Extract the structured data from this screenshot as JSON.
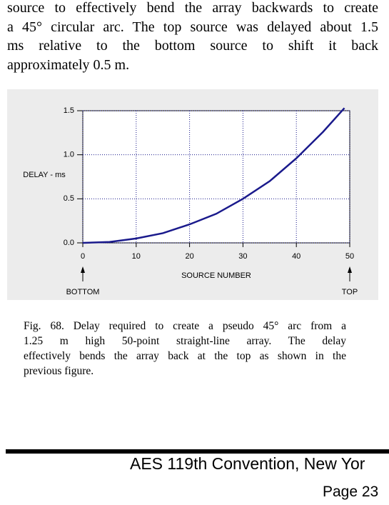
{
  "paragraph": {
    "lines": [
      "source to effectively bend the array backwards to create",
      "a 45° circular arc. The top source was delayed about 1.5",
      "ms relative to the bottom source to shift it back",
      "approximately 0.5 m."
    ]
  },
  "chart_data": {
    "type": "line",
    "ylabel": "DELAY - ms",
    "xlabel": "SOURCE NUMBER",
    "annotations": [
      "BOTTOM",
      "TOP"
    ],
    "x": [
      0,
      5,
      10,
      15,
      20,
      25,
      30,
      35,
      40,
      45,
      49
    ],
    "values": [
      0,
      0.01,
      0.05,
      0.11,
      0.21,
      0.33,
      0.5,
      0.7,
      0.96,
      1.26,
      1.53
    ],
    "color": "#1a1a8c",
    "xlim": [
      0,
      50
    ],
    "xticks": [
      0,
      10,
      20,
      30,
      40,
      50
    ],
    "ylim": [
      0,
      1.5
    ],
    "yticks": [
      {
        "value": 0,
        "label": "0.0"
      },
      {
        "value": 0.5,
        "label": "0.5"
      },
      {
        "value": 1,
        "label": "1.0"
      },
      {
        "value": 1.5,
        "label": "1.5"
      }
    ],
    "grid": true
  },
  "caption": {
    "lines": [
      "Fig. 68. Delay required to create a pseudo 45° arc from a",
      "1.25 m high 50-point straight-line array. The delay",
      "effectively bends the array back at the top as shown in the",
      "previous figure."
    ]
  },
  "footer": {
    "conference": "AES 119th Convention, New Yor",
    "page": "Page 23"
  }
}
